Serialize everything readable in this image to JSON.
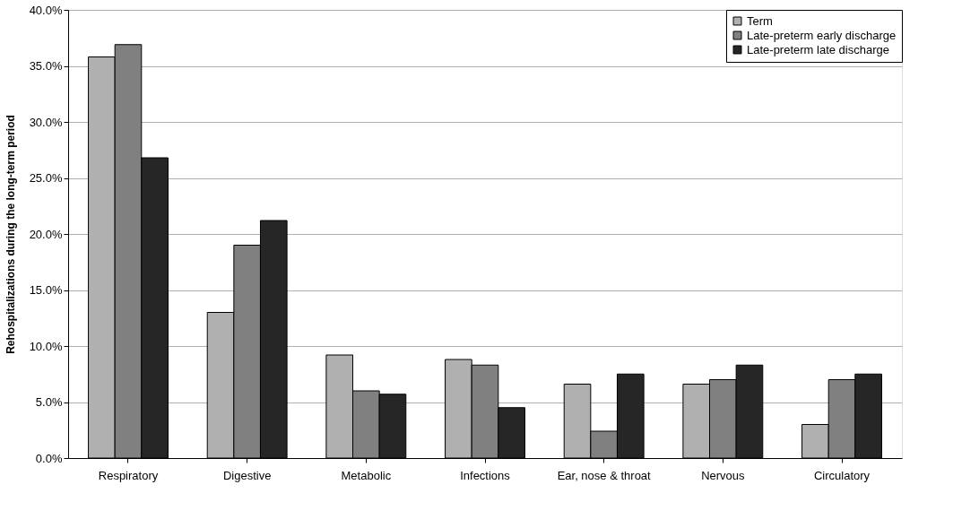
{
  "chart_data": {
    "type": "bar",
    "ylabel": "Rehospitalizations during the long-term period",
    "categories": [
      "Respiratory",
      "Digestive",
      "Metabolic",
      "Infections",
      "Ear, nose & throat",
      "Nervous",
      "Circulatory"
    ],
    "series": [
      {
        "name": "Term",
        "color": "#b0b0b0",
        "values": [
          35.8,
          13.0,
          9.2,
          8.8,
          6.6,
          6.6,
          3.0
        ]
      },
      {
        "name": "Late-preterm early discharge",
        "color": "#808080",
        "values": [
          36.9,
          19.0,
          6.0,
          8.3,
          2.4,
          7.0,
          7.0
        ]
      },
      {
        "name": "Late-preterm late discharge",
        "color": "#262626",
        "values": [
          26.8,
          21.2,
          5.7,
          4.5,
          7.5,
          8.3,
          7.5
        ]
      }
    ],
    "ylim": [
      0,
      40
    ],
    "yticks": [
      {
        "value": 0,
        "label": "0.0%"
      },
      {
        "value": 5,
        "label": "5.0%"
      },
      {
        "value": 10,
        "label": "10.0%"
      },
      {
        "value": 15,
        "label": "15.0%"
      },
      {
        "value": 20,
        "label": "20.0%"
      },
      {
        "value": 25,
        "label": "25.0%"
      },
      {
        "value": 30,
        "label": "30.0%"
      },
      {
        "value": 35,
        "label": "35.0%"
      },
      {
        "value": 40,
        "label": "40.0%"
      }
    ],
    "grid": "y",
    "legend": "top right"
  }
}
